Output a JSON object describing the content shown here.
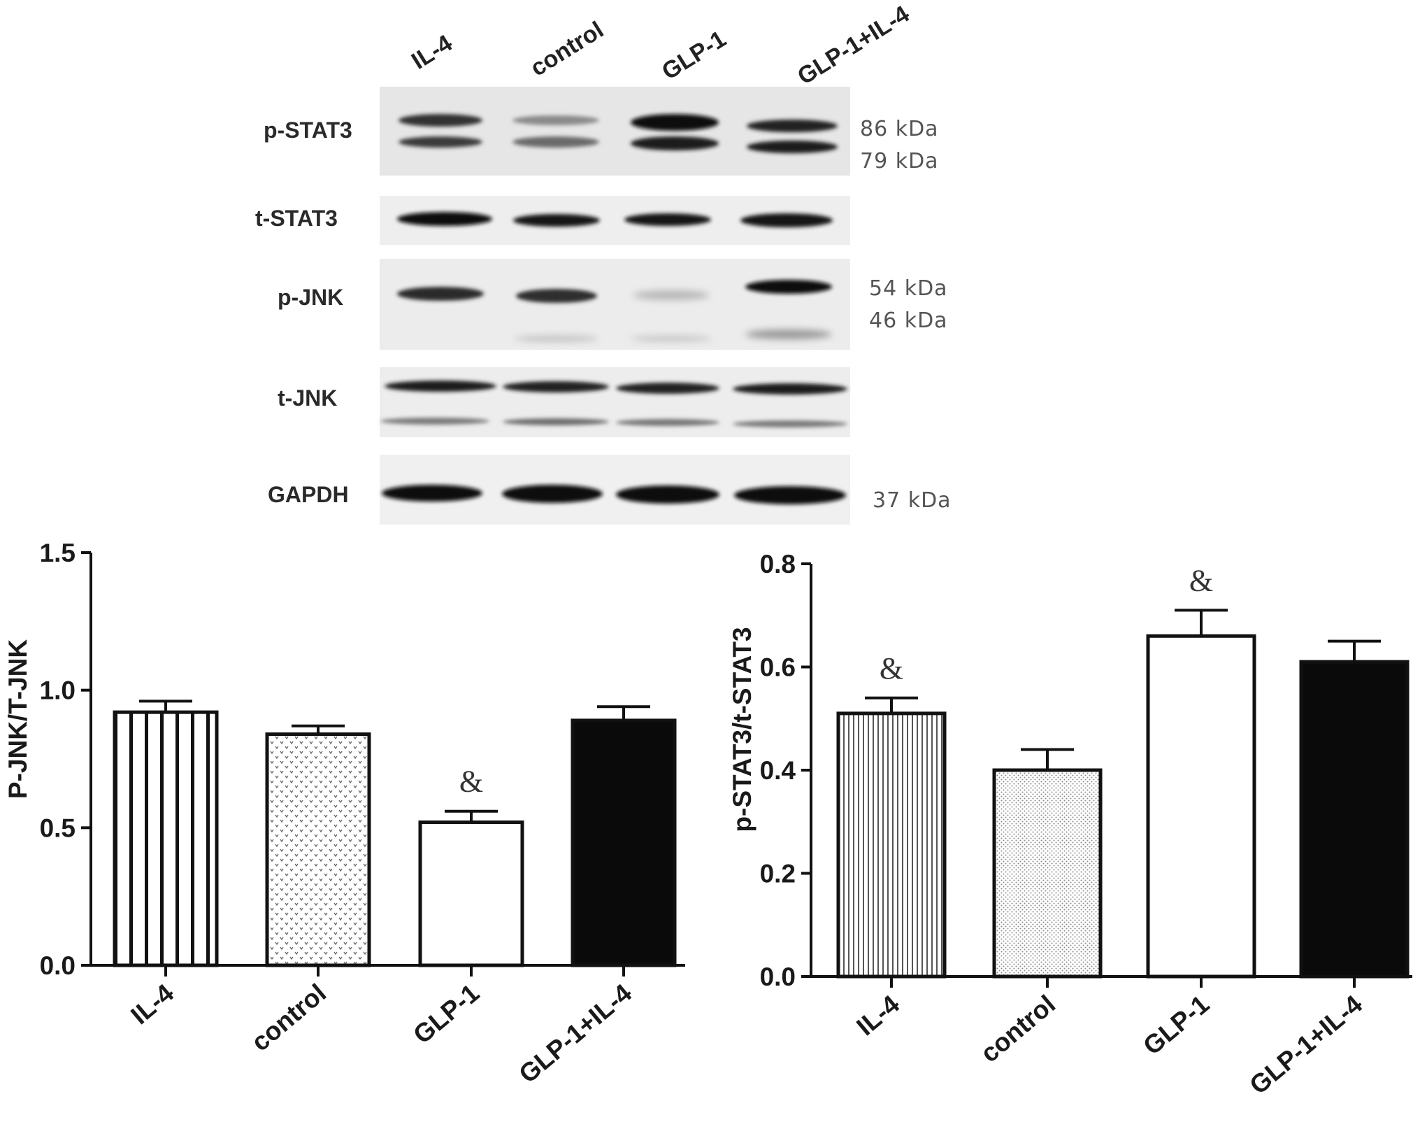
{
  "blot": {
    "lanes": [
      "IL-4",
      "control",
      "GLP-1",
      "GLP-1+IL-4"
    ],
    "rows": [
      {
        "label": "p-STAT3",
        "kda": [
          "86 kDa",
          "79 kDa"
        ]
      },
      {
        "label": "t-STAT3",
        "kda": []
      },
      {
        "label": "p-JNK",
        "kda": [
          "54 kDa",
          "46 kDa"
        ]
      },
      {
        "label": "t-JNK",
        "kda": []
      },
      {
        "label": "GAPDH",
        "kda": [
          "37 kDa"
        ]
      }
    ]
  },
  "colors": {
    "axis": "#111111",
    "membrane": "#e9e9e9",
    "band": "#1a1a1a"
  },
  "chart_data": [
    {
      "type": "bar",
      "title": "",
      "xlabel": "",
      "ylabel": "P-JNK/T-JNK",
      "ylim": [
        0,
        1.5
      ],
      "yticks": [
        "0.0",
        "0.5",
        "1.0",
        "1.5"
      ],
      "categories": [
        "IL-4",
        "control",
        "GLP-1",
        "GLP-1+IL-4"
      ],
      "values": [
        0.92,
        0.84,
        0.52,
        0.89
      ],
      "errors": [
        0.04,
        0.03,
        0.04,
        0.05
      ],
      "annotations": [
        {
          "category": "GLP-1",
          "text": "&"
        }
      ],
      "fills": [
        "vertical-stripes",
        "dotted",
        "white",
        "black"
      ]
    },
    {
      "type": "bar",
      "title": "",
      "xlabel": "",
      "ylabel": "p-STAT3/t-STAT3",
      "ylim": [
        0,
        0.8
      ],
      "yticks": [
        "0.0",
        "0.2",
        "0.4",
        "0.6",
        "0.8"
      ],
      "categories": [
        "IL-4",
        "control",
        "GLP-1",
        "GLP-1+IL-4"
      ],
      "values": [
        0.51,
        0.4,
        0.66,
        0.61
      ],
      "errors": [
        0.03,
        0.04,
        0.05,
        0.04
      ],
      "annotations": [
        {
          "category": "IL-4",
          "text": "&"
        },
        {
          "category": "GLP-1",
          "text": "&"
        }
      ],
      "fills": [
        "fine-stripes",
        "dotted",
        "white",
        "black"
      ]
    }
  ]
}
